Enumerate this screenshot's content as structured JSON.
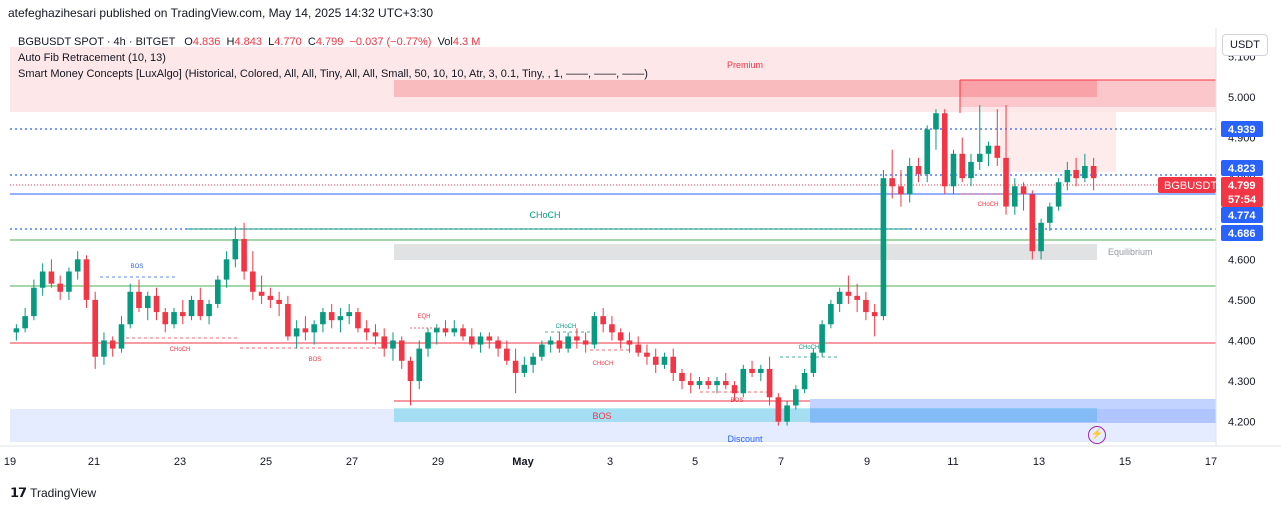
{
  "header": {
    "published": "atefeghazihesari published on TradingView.com, May 14, 2025 14:32 UTC+3:30"
  },
  "legend": {
    "symbol": "BGBUSDT SPOT · 4h · BITGET",
    "o_label": "O",
    "o_value": "4.836",
    "h_label": "H",
    "h_value": "4.843",
    "l_label": "L",
    "l_value": "4.770",
    "c_label": "C",
    "c_value": "4.799",
    "change": "−0.037 (−0.77%)",
    "vol_label": "Vol",
    "vol_value": "4.3 M",
    "indicator_1": "Auto Fib Retracement (10, 13)",
    "indicator_2": "Smart Money Concepts [LuxAlgo] (Historical, Colored, All, All, Tiny, All, All, Small, 50, 10, 10, Atr, 3, 0.1, Tiny, , 1, ——, ——, ——)"
  },
  "currency": "USDT",
  "brand": "TradingView",
  "colors": {
    "up": "#089981",
    "down": "#f23645",
    "premium": "#f23645",
    "discount": "#2962ff",
    "equilibrium": "#787b86",
    "fib_blue": "#2962ff"
  },
  "chart_data": {
    "type": "candlestick",
    "symbol": "BGBUSDT",
    "timeframe": "4h",
    "ylim": [
      4.14,
      5.17
    ],
    "y_ticks": [
      "5.100",
      "5.000",
      "4.900",
      "4.800",
      "4.700",
      "4.600",
      "4.500",
      "4.400",
      "4.300",
      "4.200"
    ],
    "x_ticks": [
      "19",
      "21",
      "23",
      "25",
      "27",
      "29",
      "May",
      "3",
      "5",
      "7",
      "9",
      "11",
      "13",
      "15",
      "17"
    ],
    "price_badges": [
      {
        "label": "4.939",
        "color": "#2962ff"
      },
      {
        "label": "4.823",
        "color": "#2962ff"
      },
      {
        "label": "4.799",
        "color": "#f23645"
      },
      {
        "label": "57:54",
        "color": "#f23645"
      },
      {
        "label": "4.774",
        "color": "#2962ff"
      },
      {
        "label": "4.686",
        "color": "#2962ff"
      }
    ],
    "symbol_badge": "BGBUSDT",
    "zone_labels": {
      "premium": "Premium",
      "equilibrium": "Equilibrium",
      "discount": "Discount"
    },
    "annotations": [
      "BOS",
      "CHoCH",
      "CHoCH",
      "BOS",
      "EQH",
      "CHoCH",
      "CHoCH",
      "BOS",
      "CHoCH",
      "CHoCH",
      "BOS"
    ],
    "candles": [
      [
        4.42,
        4.44,
        4.4,
        4.43
      ],
      [
        4.43,
        4.48,
        4.42,
        4.46
      ],
      [
        4.46,
        4.55,
        4.45,
        4.53
      ],
      [
        4.53,
        4.59,
        4.51,
        4.57
      ],
      [
        4.57,
        4.6,
        4.53,
        4.54
      ],
      [
        4.54,
        4.56,
        4.5,
        4.52
      ],
      [
        4.52,
        4.58,
        4.5,
        4.57
      ],
      [
        4.57,
        4.62,
        4.55,
        4.6
      ],
      [
        4.6,
        4.61,
        4.48,
        4.5
      ],
      [
        4.5,
        4.52,
        4.33,
        4.36
      ],
      [
        4.36,
        4.42,
        4.34,
        4.4
      ],
      [
        4.4,
        4.41,
        4.36,
        4.38
      ],
      [
        4.38,
        4.46,
        4.37,
        4.44
      ],
      [
        4.44,
        4.54,
        4.43,
        4.52
      ],
      [
        4.52,
        4.55,
        4.47,
        4.48
      ],
      [
        4.48,
        4.52,
        4.45,
        4.51
      ],
      [
        4.51,
        4.53,
        4.45,
        4.47
      ],
      [
        4.47,
        4.48,
        4.42,
        4.44
      ],
      [
        4.44,
        4.48,
        4.43,
        4.47
      ],
      [
        4.47,
        4.5,
        4.44,
        4.46
      ],
      [
        4.46,
        4.51,
        4.45,
        4.5
      ],
      [
        4.5,
        4.53,
        4.45,
        4.46
      ],
      [
        4.46,
        4.5,
        4.44,
        4.49
      ],
      [
        4.49,
        4.56,
        4.48,
        4.55
      ],
      [
        4.55,
        4.62,
        4.53,
        4.6
      ],
      [
        4.6,
        4.68,
        4.58,
        4.65
      ],
      [
        4.65,
        4.69,
        4.55,
        4.57
      ],
      [
        4.57,
        4.62,
        4.5,
        4.52
      ],
      [
        4.52,
        4.56,
        4.49,
        4.51
      ],
      [
        4.51,
        4.53,
        4.48,
        4.5
      ],
      [
        4.5,
        4.52,
        4.46,
        4.49
      ],
      [
        4.49,
        4.51,
        4.4,
        4.41
      ],
      [
        4.41,
        4.45,
        4.38,
        4.43
      ],
      [
        4.43,
        4.46,
        4.4,
        4.42
      ],
      [
        4.42,
        4.45,
        4.39,
        4.44
      ],
      [
        4.44,
        4.48,
        4.42,
        4.47
      ],
      [
        4.47,
        4.49,
        4.43,
        4.45
      ],
      [
        4.45,
        4.48,
        4.42,
        4.46
      ],
      [
        4.46,
        4.49,
        4.44,
        4.47
      ],
      [
        4.47,
        4.48,
        4.42,
        4.43
      ],
      [
        4.43,
        4.45,
        4.4,
        4.42
      ],
      [
        4.42,
        4.44,
        4.39,
        4.41
      ],
      [
        4.41,
        4.43,
        4.36,
        4.38
      ],
      [
        4.38,
        4.42,
        4.35,
        4.4
      ],
      [
        4.4,
        4.41,
        4.33,
        4.35
      ],
      [
        4.35,
        4.36,
        4.24,
        4.3
      ],
      [
        4.3,
        4.4,
        4.28,
        4.38
      ],
      [
        4.38,
        4.43,
        4.36,
        4.42
      ],
      [
        4.42,
        4.44,
        4.39,
        4.43
      ],
      [
        4.43,
        4.45,
        4.41,
        4.42
      ],
      [
        4.42,
        4.45,
        4.41,
        4.43
      ],
      [
        4.43,
        4.44,
        4.4,
        4.41
      ],
      [
        4.41,
        4.43,
        4.38,
        4.39
      ],
      [
        4.39,
        4.42,
        4.37,
        4.41
      ],
      [
        4.41,
        4.42,
        4.38,
        4.4
      ],
      [
        4.4,
        4.41,
        4.36,
        4.38
      ],
      [
        4.38,
        4.4,
        4.34,
        4.35
      ],
      [
        4.35,
        4.38,
        4.27,
        4.32
      ],
      [
        4.32,
        4.36,
        4.31,
        4.34
      ],
      [
        4.34,
        4.37,
        4.32,
        4.36
      ],
      [
        4.36,
        4.4,
        4.35,
        4.39
      ],
      [
        4.39,
        4.41,
        4.37,
        4.4
      ],
      [
        4.4,
        4.42,
        4.37,
        4.38
      ],
      [
        4.38,
        4.42,
        4.37,
        4.41
      ],
      [
        4.41,
        4.43,
        4.38,
        4.4
      ],
      [
        4.4,
        4.42,
        4.37,
        4.39
      ],
      [
        4.39,
        4.47,
        4.38,
        4.46
      ],
      [
        4.46,
        4.48,
        4.42,
        4.44
      ],
      [
        4.44,
        4.46,
        4.4,
        4.42
      ],
      [
        4.42,
        4.43,
        4.38,
        4.4
      ],
      [
        4.4,
        4.42,
        4.37,
        4.39
      ],
      [
        4.39,
        4.41,
        4.36,
        4.37
      ],
      [
        4.37,
        4.39,
        4.34,
        4.36
      ],
      [
        4.36,
        4.38,
        4.32,
        4.34
      ],
      [
        4.34,
        4.37,
        4.33,
        4.36
      ],
      [
        4.36,
        4.38,
        4.3,
        4.32
      ],
      [
        4.32,
        4.33,
        4.28,
        4.3
      ],
      [
        4.3,
        4.32,
        4.27,
        4.29
      ],
      [
        4.29,
        4.31,
        4.28,
        4.3
      ],
      [
        4.3,
        4.31,
        4.28,
        4.29
      ],
      [
        4.29,
        4.31,
        4.27,
        4.3
      ],
      [
        4.3,
        4.32,
        4.28,
        4.29
      ],
      [
        4.29,
        4.3,
        4.25,
        4.27
      ],
      [
        4.27,
        4.34,
        4.26,
        4.33
      ],
      [
        4.33,
        4.35,
        4.31,
        4.32
      ],
      [
        4.32,
        4.34,
        4.3,
        4.33
      ],
      [
        4.33,
        4.36,
        4.24,
        4.26
      ],
      [
        4.26,
        4.27,
        4.19,
        4.2
      ],
      [
        4.2,
        4.25,
        4.19,
        4.24
      ],
      [
        4.24,
        4.29,
        4.23,
        4.28
      ],
      [
        4.28,
        4.33,
        4.27,
        4.32
      ],
      [
        4.32,
        4.38,
        4.31,
        4.37
      ],
      [
        4.37,
        4.45,
        4.36,
        4.44
      ],
      [
        4.44,
        4.5,
        4.43,
        4.49
      ],
      [
        4.49,
        4.53,
        4.47,
        4.52
      ],
      [
        4.52,
        4.56,
        4.49,
        4.51
      ],
      [
        4.51,
        4.54,
        4.47,
        4.5
      ],
      [
        4.5,
        4.52,
        4.45,
        4.47
      ],
      [
        4.47,
        4.49,
        4.41,
        4.46
      ],
      [
        4.46,
        4.82,
        4.45,
        4.8
      ],
      [
        4.8,
        4.87,
        4.75,
        4.78
      ],
      [
        4.78,
        4.82,
        4.73,
        4.76
      ],
      [
        4.76,
        4.85,
        4.74,
        4.83
      ],
      [
        4.83,
        4.85,
        4.79,
        4.81
      ],
      [
        4.81,
        4.93,
        4.79,
        4.92
      ],
      [
        4.92,
        4.97,
        4.87,
        4.96
      ],
      [
        4.96,
        4.97,
        4.76,
        4.78
      ],
      [
        4.78,
        4.87,
        4.76,
        4.86
      ],
      [
        4.86,
        4.9,
        4.79,
        4.8
      ],
      [
        4.8,
        4.86,
        4.78,
        4.84
      ],
      [
        4.84,
        4.98,
        4.82,
        4.86
      ],
      [
        4.86,
        4.89,
        4.83,
        4.88
      ],
      [
        4.88,
        4.97,
        4.83,
        4.85
      ],
      [
        4.85,
        4.98,
        4.71,
        4.73
      ],
      [
        4.73,
        4.8,
        4.71,
        4.78
      ],
      [
        4.78,
        4.79,
        4.72,
        4.76
      ],
      [
        4.76,
        4.77,
        4.6,
        4.62
      ],
      [
        4.62,
        4.7,
        4.6,
        4.69
      ],
      [
        4.69,
        4.74,
        4.67,
        4.73
      ],
      [
        4.73,
        4.8,
        4.72,
        4.79
      ],
      [
        4.79,
        4.84,
        4.77,
        4.82
      ],
      [
        4.82,
        4.85,
        4.78,
        4.8
      ],
      [
        4.8,
        4.86,
        4.79,
        4.83
      ],
      [
        4.83,
        4.85,
        4.77,
        4.8
      ]
    ]
  }
}
